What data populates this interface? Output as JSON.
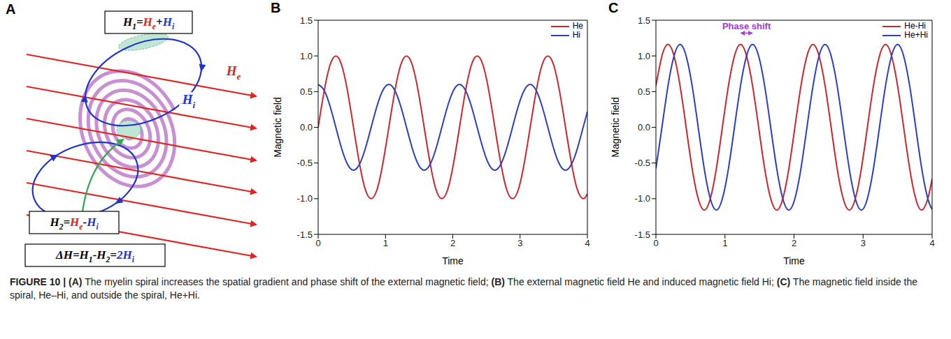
{
  "diagram": {
    "panel": "A",
    "field": {
      "t": "H",
      "sub": "e",
      "color": "#e02424"
    },
    "induced": {
      "t": "H",
      "sub": "i",
      "color": "#1f35c8"
    },
    "boxes": [
      [
        {
          "t": "H",
          "sub": "1"
        },
        {
          "t": "="
        },
        {
          "t": "H",
          "sub": "e",
          "color": "#e02424"
        },
        {
          "t": "+"
        },
        {
          "t": "H",
          "sub": "i",
          "color": "#1f35c8"
        }
      ],
      [
        {
          "t": "H",
          "sub": "2"
        },
        {
          "t": "="
        },
        {
          "t": "H",
          "sub": "e",
          "color": "#e02424"
        },
        {
          "t": "-"
        },
        {
          "t": "H",
          "sub": "i",
          "color": "#1f35c8"
        }
      ],
      [
        {
          "t": "ΔH"
        },
        {
          "t": "="
        },
        {
          "t": "H",
          "sub": "1"
        },
        {
          "t": "-"
        },
        {
          "t": "H",
          "sub": "2"
        },
        {
          "t": "="
        },
        {
          "t": "2H",
          "sub": "i",
          "color": "#1f35c8"
        }
      ]
    ]
  },
  "chart_data": [
    {
      "panel": "B",
      "type": "line",
      "x_label": "Time",
      "y_label": "Magnetic field",
      "xlim": [
        0,
        4
      ],
      "ylim": [
        -1.5,
        1.5
      ],
      "xticks": [
        0,
        1,
        2,
        3,
        4
      ],
      "yticks": [
        -1.5,
        {
          "value": -1,
          "label": "-1.0"
        },
        -0.5,
        {
          "value": 0,
          "label": "0.0"
        },
        0.5,
        {
          "value": 1,
          "label": "1.0"
        },
        1.5
      ],
      "grid": false,
      "legend": "upper right",
      "x": [
        0,
        0.0875,
        0.175,
        0.2625,
        0.35,
        0.4375,
        0.525,
        0.6125,
        0.7,
        0.7875,
        0.875,
        0.9625,
        1.05,
        1.1375,
        1.225,
        1.3125,
        1.4,
        1.4875,
        1.575,
        1.6625,
        1.75,
        1.8375,
        1.925,
        2.0125,
        2.1,
        2.1875,
        2.275,
        2.3625,
        2.45,
        2.5375,
        2.625,
        2.7125,
        2.8,
        2.8875,
        2.975,
        3.0625,
        3.15,
        3.2375,
        3.325,
        3.4125,
        3.5,
        3.5875,
        3.675,
        3.7625,
        3.85,
        3.9375,
        4
      ],
      "series": [
        {
          "name": "He",
          "color": "#c8282e",
          "values": [
            0,
            0.5,
            0.87,
            1,
            0.87,
            0.5,
            0,
            -0.5,
            -0.87,
            -1,
            -0.87,
            -0.5,
            0,
            0.5,
            0.87,
            1,
            0.87,
            0.5,
            0,
            -0.5,
            -0.87,
            -1,
            -0.87,
            -0.5,
            0,
            0.5,
            0.87,
            1,
            0.87,
            0.5,
            0,
            -0.5,
            -0.87,
            -1,
            -0.87,
            -0.5,
            0,
            0.5,
            0.87,
            1,
            0.87,
            0.5,
            0,
            -0.5,
            -0.87,
            -1,
            -0.93
          ]
        },
        {
          "name": "Hi",
          "color": "#2b3fbf",
          "values": [
            0.6,
            0.52,
            0.3,
            0,
            -0.3,
            -0.52,
            -0.6,
            -0.52,
            -0.3,
            0,
            0.3,
            0.52,
            0.6,
            0.52,
            0.3,
            0,
            -0.3,
            -0.52,
            -0.6,
            -0.52,
            -0.3,
            0,
            0.3,
            0.52,
            0.6,
            0.52,
            0.3,
            0,
            -0.3,
            -0.52,
            -0.6,
            -0.52,
            -0.3,
            0,
            0.3,
            0.52,
            0.6,
            0.52,
            0.3,
            0,
            -0.3,
            -0.52,
            -0.6,
            -0.52,
            -0.3,
            0,
            0.22
          ]
        }
      ]
    },
    {
      "panel": "C",
      "type": "line",
      "x_label": "Time",
      "y_label": "Magnetic field",
      "xlim": [
        0,
        4
      ],
      "ylim": [
        -1.5,
        1.5
      ],
      "xticks": [
        0,
        1,
        2,
        3,
        4
      ],
      "yticks": [
        -1.5,
        {
          "value": -1,
          "label": "-1.0"
        },
        -0.5,
        {
          "value": 0,
          "label": "0.0"
        },
        0.5,
        {
          "value": 1,
          "label": "1.0"
        },
        1.5
      ],
      "grid": false,
      "legend": "upper right",
      "annotations": [
        {
          "text": "Phase shift",
          "x": [
            1.225,
            1.4
          ],
          "y": 1.32,
          "color": "#a23bd6"
        }
      ],
      "x": [
        0,
        0.0875,
        0.175,
        0.2625,
        0.35,
        0.4375,
        0.525,
        0.6125,
        0.7,
        0.7875,
        0.875,
        0.9625,
        1.05,
        1.1375,
        1.225,
        1.3125,
        1.4,
        1.4875,
        1.575,
        1.6625,
        1.75,
        1.8375,
        1.925,
        2.0125,
        2.1,
        2.1875,
        2.275,
        2.3625,
        2.45,
        2.5375,
        2.625,
        2.7125,
        2.8,
        2.8875,
        2.975,
        3.0625,
        3.15,
        3.2375,
        3.325,
        3.4125,
        3.5,
        3.5875,
        3.675,
        3.7625,
        3.85,
        3.9375,
        4
      ],
      "series": [
        {
          "name": "He-Hi",
          "color": "#c8282e",
          "values": [
            0.58,
            1,
            1.16,
            1,
            0.58,
            0,
            -0.58,
            -1,
            -1.16,
            -1,
            -0.58,
            0,
            0.58,
            1,
            1.16,
            1,
            0.58,
            0,
            -0.58,
            -1,
            -1.16,
            -1,
            -0.58,
            0,
            0.58,
            1,
            1.16,
            1,
            0.58,
            0,
            -0.58,
            -1,
            -1.16,
            -1,
            -0.58,
            0,
            0.58,
            1,
            1.16,
            1,
            0.58,
            0,
            -0.58,
            -1,
            -1.16,
            -1,
            -0.72
          ]
        },
        {
          "name": "He+Hi",
          "color": "#2b3fbf",
          "values": [
            -0.58,
            0,
            0.58,
            1,
            1.16,
            1,
            0.58,
            0,
            -0.58,
            -1,
            -1.16,
            -1,
            -0.58,
            0,
            0.58,
            1,
            1.16,
            1,
            0.58,
            0,
            -0.58,
            -1,
            -1.16,
            -1,
            -0.58,
            0,
            0.58,
            1,
            1.16,
            1,
            0.58,
            0,
            -0.58,
            -1,
            -1.16,
            -1,
            -0.58,
            0,
            0.58,
            1,
            1.16,
            1,
            0.58,
            0,
            -0.58,
            -1,
            -1.15
          ]
        }
      ]
    }
  ],
  "caption": {
    "figure": "FIGURE 10 |",
    "items": [
      {
        "panel": "(A)",
        "text": "The myelin spiral increases the spatial gradient and phase shift of the external magnetic field;"
      },
      {
        "panel": "(B)",
        "text": "The external magnetic field He and induced magnetic field Hi;"
      },
      {
        "panel": "(C)",
        "text": "The magnetic field inside the spiral, He–Hi, and outside the spiral, He+Hi."
      }
    ]
  }
}
